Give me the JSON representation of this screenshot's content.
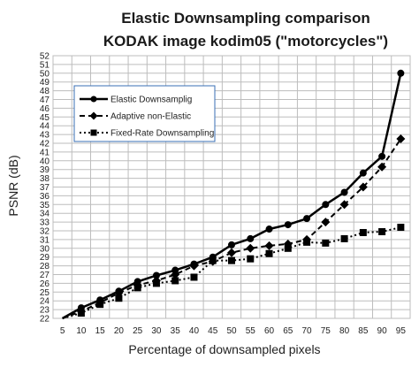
{
  "chart_data": {
    "type": "line",
    "title": "Elastic Downsampling comparison",
    "subtitle": "KODAK image kodim05 (\"motorcycles\")",
    "xlabel": "Percentage of downsampled pixels",
    "ylabel": "PSNR (dB)",
    "categories": [
      "5",
      "10",
      "15",
      "20",
      "25",
      "30",
      "35",
      "40",
      "45",
      "50",
      "55",
      "60",
      "65",
      "70",
      "75",
      "80",
      "85",
      "90",
      "95"
    ],
    "ylim": [
      22,
      52
    ],
    "ytick_step": 1,
    "grid": true,
    "legend_position": "top-left",
    "series": [
      {
        "name": "Elastic Downsamplig",
        "style": "solid",
        "marker": "circle",
        "values": [
          22.0,
          23.2,
          24.1,
          25.1,
          26.2,
          26.9,
          27.5,
          28.2,
          29.0,
          30.4,
          31.1,
          32.2,
          32.7,
          33.4,
          35.0,
          36.4,
          38.6,
          40.5,
          50.0
        ]
      },
      {
        "name": "Adaptive non-Elastic",
        "style": "dashed",
        "marker": "diamond",
        "values": [
          22.0,
          22.8,
          23.8,
          24.9,
          25.8,
          26.3,
          27.0,
          28.0,
          28.5,
          29.5,
          30.0,
          30.3,
          30.5,
          31.0,
          33.0,
          35.0,
          37.0,
          39.3,
          42.5
        ]
      },
      {
        "name": "Fixed-Rate Downsampling",
        "style": "dotted",
        "marker": "square",
        "values": [
          22.0,
          22.6,
          23.6,
          24.3,
          25.5,
          26.0,
          26.3,
          26.7,
          28.6,
          28.6,
          28.8,
          29.4,
          30.0,
          30.7,
          30.6,
          31.1,
          31.8,
          31.9,
          32.4
        ]
      }
    ],
    "colors": {
      "line": "#000000",
      "grid": "#bdbdbd",
      "legend_border": "#3a6fb5"
    }
  }
}
